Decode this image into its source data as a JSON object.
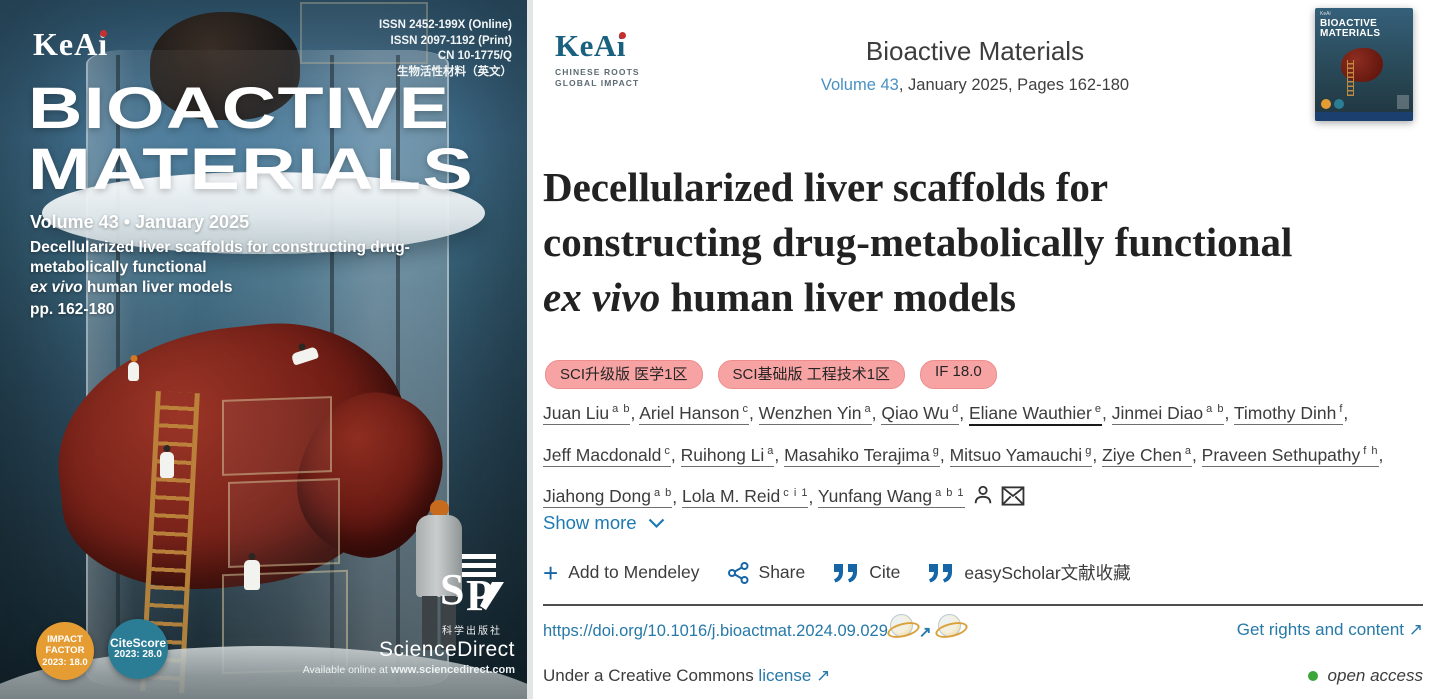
{
  "cover": {
    "logo": "KeAi",
    "issn_lines": [
      "ISSN 2452-199X (Online)",
      "ISSN 2097-1192 (Print)",
      "CN 10-1775/Q",
      "生物活性材料（英文）"
    ],
    "title_line1": "BIOACTIVE",
    "title_line2": "MATERIALS",
    "volume_line": "Volume 43 • January 2025",
    "article_line1": "Decellularized liver scaffolds for constructing drug-metabolically functional",
    "article_italic": "ex vivo",
    "article_line2_rest": " human liver models",
    "pages": "pp. 162-180",
    "impact_badge": {
      "l1": "IMPACT",
      "l2": "FACTOR",
      "l3": "2023: 18.0"
    },
    "citescore_badge": {
      "l1": "CiteScore",
      "l2": "2023: 28.0"
    },
    "publisher_cn": "科学出版社",
    "sciencedirect": "ScienceDirect",
    "available_prefix": "Available online at ",
    "available_url": "www.sciencedirect.com"
  },
  "header": {
    "logo": "KeAi",
    "tagline1": "CHINESE ROOTS",
    "tagline2": "GLOBAL IMPACT",
    "journal": "Bioactive Materials",
    "volume_link": "Volume 43",
    "issue_rest": ", January 2025, Pages 162-180"
  },
  "article": {
    "title_line1": "Decellularized liver scaffolds for",
    "title_line2": "constructing drug-metabolically functional",
    "title_line3_italic": "ex vivo",
    "title_line3_rest": " human liver models",
    "badges": [
      "SCI升级版 医学1区",
      "SCI基础版 工程技术1区",
      "IF 18.0"
    ],
    "authors": [
      {
        "name": "Juan Liu",
        "sup": "a b"
      },
      {
        "name": "Ariel Hanson",
        "sup": "c"
      },
      {
        "name": "Wenzhen Yin",
        "sup": "a"
      },
      {
        "name": "Qiao Wu",
        "sup": "d"
      },
      {
        "name": "Eliane Wauthier",
        "sup": "e",
        "strong": true
      },
      {
        "name": "Jinmei Diao",
        "sup": "a b"
      },
      {
        "name": "Timothy Dinh",
        "sup": "f"
      },
      {
        "name": "Jeff Macdonald",
        "sup": "c"
      },
      {
        "name": "Ruihong Li",
        "sup": "a"
      },
      {
        "name": "Masahiko Terajima",
        "sup": "g"
      },
      {
        "name": "Mitsuo Yamauchi",
        "sup": "g"
      },
      {
        "name": "Ziye Chen",
        "sup": "a"
      },
      {
        "name": "Praveen Sethupathy",
        "sup": "f h"
      },
      {
        "name": "Jiahong Dong",
        "sup": "a b"
      },
      {
        "name": "Lola M. Reid",
        "sup": "c i 1"
      },
      {
        "name": "Yunfang Wang",
        "sup": "a b 1"
      }
    ],
    "show_more": "Show more",
    "actions": {
      "mendeley": "Add to Mendeley",
      "share": "Share",
      "cite": "Cite",
      "easyscholar": "easyScholar文献收藏"
    },
    "doi": "https://doi.org/10.1016/j.bioactmat.2024.09.029",
    "rights_link": "Get rights and content",
    "license_prefix": "Under a Creative Commons ",
    "license_link": "license",
    "open_access": "open access"
  },
  "icons": {
    "external_arrow": "↗",
    "plus": "+"
  },
  "colors": {
    "link_blue": "#2679a8",
    "volume_blue": "#4a90c2",
    "icon_blue": "#1565a7",
    "badge_pink": "#f7a3a3",
    "open_access_green": "#3aa53a",
    "impact_orange": "#e59d33",
    "citescore_teal": "#2b7d95"
  }
}
